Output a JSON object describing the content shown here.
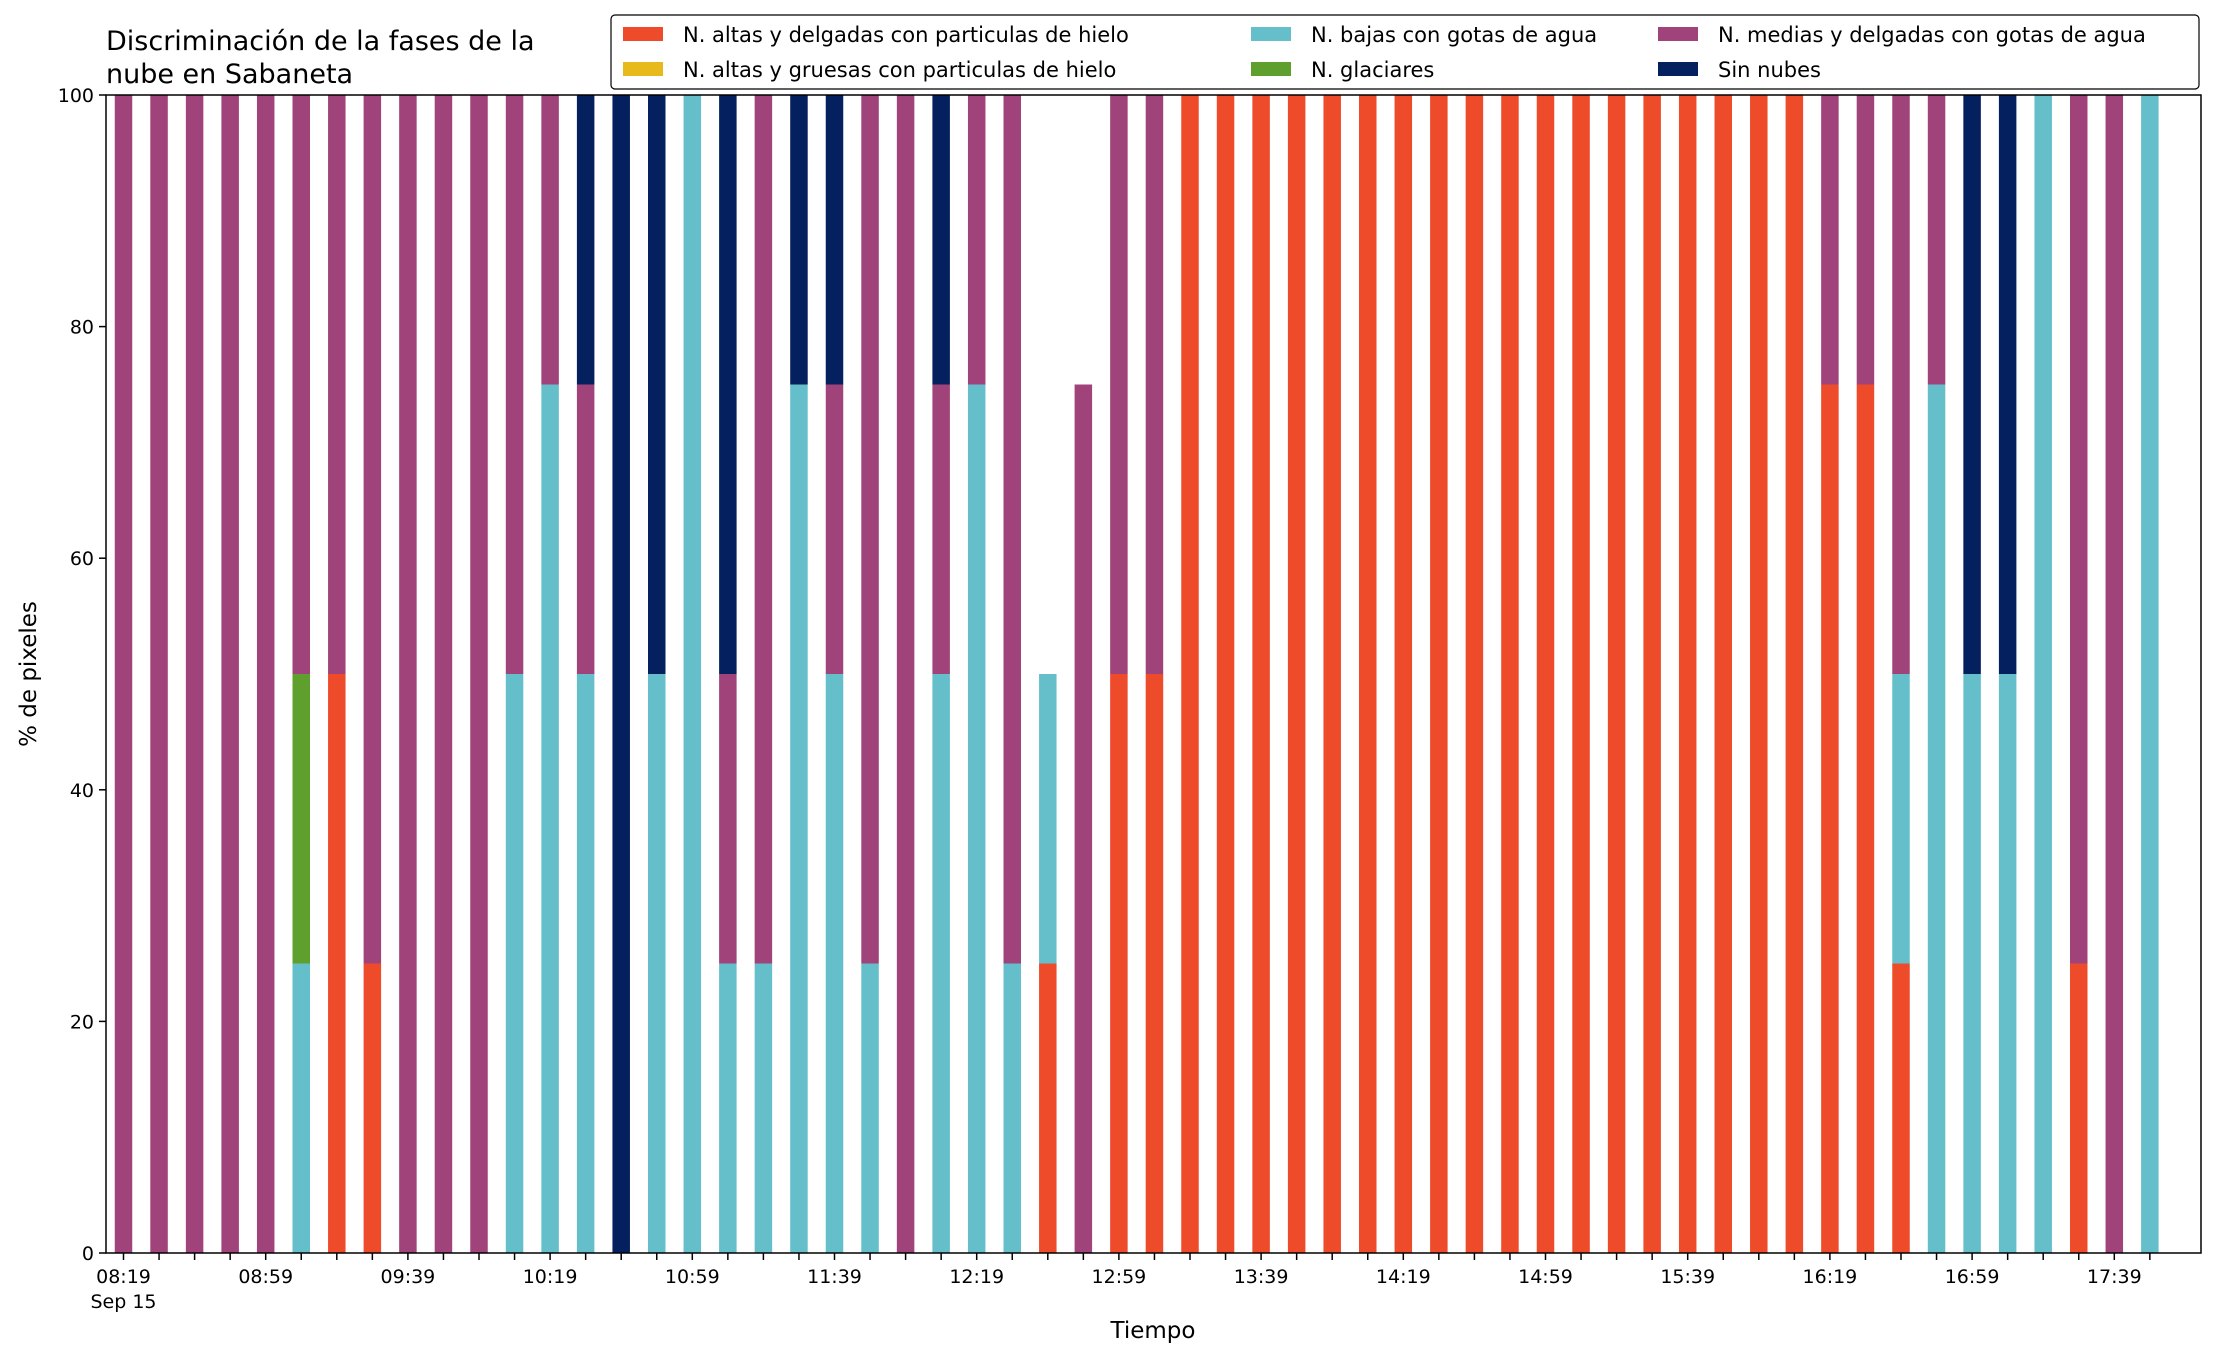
{
  "chart_data": {
    "type": "bar",
    "stacked": true,
    "title_lines": [
      "Discriminación de la fases de la",
      "nube en Sabaneta"
    ],
    "xlabel": "Tiempo",
    "ylabel": "% de pixeles",
    "ylim": [
      0,
      100
    ],
    "yticks": [
      0,
      20,
      40,
      60,
      80,
      100
    ],
    "xtick_labels": [
      {
        "index": 0,
        "label": "08:19",
        "sublabel": "Sep 15"
      },
      {
        "index": 4,
        "label": "08:59"
      },
      {
        "index": 8,
        "label": "09:39"
      },
      {
        "index": 12,
        "label": "10:19"
      },
      {
        "index": 16,
        "label": "10:59"
      },
      {
        "index": 20,
        "label": "11:39"
      },
      {
        "index": 24,
        "label": "12:19"
      },
      {
        "index": 28,
        "label": "12:59"
      },
      {
        "index": 32,
        "label": "13:39"
      },
      {
        "index": 36,
        "label": "14:19"
      },
      {
        "index": 40,
        "label": "14:59"
      },
      {
        "index": 44,
        "label": "15:39"
      },
      {
        "index": 48,
        "label": "16:19"
      },
      {
        "index": 52,
        "label": "16:59"
      },
      {
        "index": 56,
        "label": "17:39"
      }
    ],
    "grid": false,
    "legend_placement": "top",
    "series": [
      {
        "name": "N. altas y delgadas con particulas de hielo",
        "color": "#ee4b2b",
        "values": [
          0,
          0,
          0,
          0,
          0,
          0,
          50,
          25,
          0,
          0,
          0,
          0,
          0,
          0,
          0,
          0,
          0,
          0,
          0,
          0,
          0,
          0,
          0,
          0,
          0,
          0,
          25,
          0,
          50,
          50,
          100,
          100,
          100,
          100,
          100,
          100,
          100,
          100,
          100,
          100,
          100,
          100,
          100,
          100,
          100,
          100,
          100,
          100,
          75,
          75,
          25,
          0,
          0,
          0,
          0,
          25,
          0,
          0
        ]
      },
      {
        "name": "N. altas y gruesas con particulas de hielo",
        "color": "#e7b91a",
        "values": [
          0,
          0,
          0,
          0,
          0,
          0,
          0,
          0,
          0,
          0,
          0,
          0,
          0,
          0,
          0,
          0,
          0,
          0,
          0,
          0,
          0,
          0,
          0,
          0,
          0,
          0,
          0,
          0,
          0,
          0,
          0,
          0,
          0,
          0,
          0,
          0,
          0,
          0,
          0,
          0,
          0,
          0,
          0,
          0,
          0,
          0,
          0,
          0,
          0,
          0,
          0,
          0,
          0,
          0,
          0,
          0,
          0,
          0
        ]
      },
      {
        "name": "N. bajas con gotas de agua",
        "color": "#65bfcb",
        "values": [
          0,
          0,
          0,
          0,
          0,
          25,
          0,
          0,
          0,
          0,
          0,
          50,
          75,
          50,
          0,
          50,
          100,
          25,
          25,
          75,
          50,
          25,
          0,
          50,
          75,
          25,
          25,
          0,
          0,
          0,
          0,
          0,
          0,
          0,
          0,
          0,
          0,
          0,
          0,
          0,
          0,
          0,
          0,
          0,
          0,
          0,
          0,
          0,
          0,
          0,
          25,
          75,
          50,
          50,
          100,
          0,
          0,
          100
        ]
      },
      {
        "name": "N. glaciares",
        "color": "#5e9f2d",
        "values": [
          0,
          0,
          0,
          0,
          0,
          25,
          0,
          0,
          0,
          0,
          0,
          0,
          0,
          0,
          0,
          0,
          0,
          0,
          0,
          0,
          0,
          0,
          0,
          0,
          0,
          0,
          0,
          0,
          0,
          0,
          0,
          0,
          0,
          0,
          0,
          0,
          0,
          0,
          0,
          0,
          0,
          0,
          0,
          0,
          0,
          0,
          0,
          0,
          0,
          0,
          0,
          0,
          0,
          0,
          0,
          0,
          0,
          0
        ]
      },
      {
        "name": "N. medias y delgadas con gotas de agua",
        "color": "#a1437b",
        "values": [
          100,
          100,
          100,
          100,
          100,
          50,
          50,
          75,
          100,
          100,
          100,
          50,
          25,
          25,
          0,
          0,
          0,
          25,
          75,
          0,
          25,
          75,
          100,
          25,
          25,
          75,
          0,
          75,
          50,
          50,
          0,
          0,
          0,
          0,
          0,
          0,
          0,
          0,
          0,
          0,
          0,
          0,
          0,
          0,
          0,
          0,
          0,
          0,
          25,
          25,
          50,
          25,
          0,
          0,
          0,
          75,
          100,
          0
        ]
      },
      {
        "name": "Sin nubes",
        "color": "#04205e",
        "values": [
          0,
          0,
          0,
          0,
          0,
          0,
          0,
          0,
          0,
          0,
          0,
          0,
          0,
          25,
          100,
          50,
          0,
          50,
          0,
          25,
          25,
          0,
          0,
          25,
          0,
          0,
          0,
          0,
          0,
          0,
          0,
          0,
          0,
          0,
          0,
          0,
          0,
          0,
          0,
          0,
          0,
          0,
          0,
          0,
          0,
          0,
          0,
          0,
          0,
          0,
          0,
          0,
          50,
          50,
          0,
          0,
          0,
          0
        ]
      }
    ]
  }
}
